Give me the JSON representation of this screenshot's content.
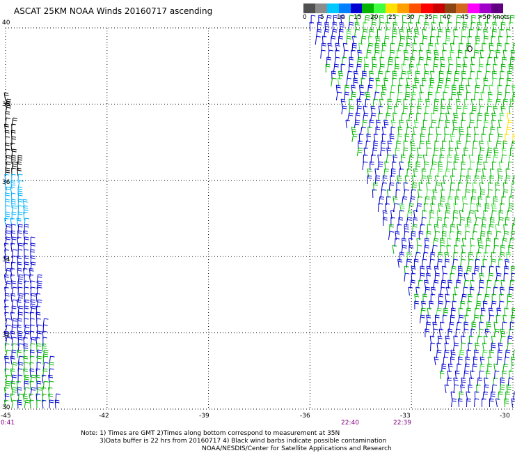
{
  "title": "ASCAT 25KM NOAA Winds 20160717 ascending",
  "legend": {
    "labels": [
      "0",
      "5",
      "10",
      "15",
      "20",
      "25",
      "30",
      "35",
      "40",
      "45",
      ">50 knots"
    ],
    "colors": [
      "#505050",
      "#8c8c8c",
      "#00c8ff",
      "#0080ff",
      "#0000d0",
      "#00b400",
      "#40ff40",
      "#ffe000",
      "#ffa000",
      "#ff5000",
      "#ff0000",
      "#c80000",
      "#8b4513",
      "#d2691e",
      "#ff00ff",
      "#a000c8",
      "#600080"
    ]
  },
  "map": {
    "lat_min": 30,
    "lat_max": 40,
    "lon_min": -45,
    "lon_max": -30,
    "lat_labels": [
      "40",
      "38",
      "36",
      "34",
      "32",
      "30"
    ],
    "lon_labels": [
      "-45",
      "-42",
      "-39",
      "-36",
      "-33",
      "-30"
    ],
    "time_labels": [
      "0:41",
      "22:40",
      "22:39"
    ]
  },
  "notes": {
    "line1": "Note: 1) Times are GMT 2)Times along bottom correspond to measurement at 35N",
    "line2": "3)Data buffer is 22 hrs from 20160717 4) Black wind barbs indicate possible contamination",
    "line3": "NOAA/NESDIS/Center for Satellite Applications and Research"
  }
}
